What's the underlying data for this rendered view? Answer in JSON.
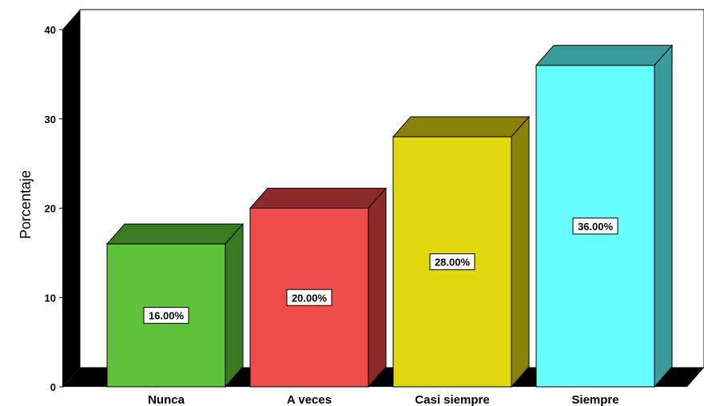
{
  "chart_data": {
    "type": "bar",
    "title": "",
    "xlabel": "",
    "ylabel": "Porcentaje",
    "ylim": [
      0,
      40
    ],
    "yticks": [
      0,
      10,
      20,
      30,
      40
    ],
    "categories": [
      "Nunca",
      "A veces",
      "Casi siempre",
      "Siempre"
    ],
    "values": [
      16,
      20,
      28,
      36
    ],
    "data_labels": [
      "16.00%",
      "20.00%",
      "28.00%",
      "36.00%"
    ],
    "colors": [
      "#5ec23a",
      "#ee4b4d",
      "#e1d80f",
      "#66ffff"
    ],
    "side_colors": [
      "#3a7a22",
      "#8c2a2a",
      "#8b820a",
      "#3a9a9a"
    ],
    "grid": false,
    "legend": "none",
    "style": "3d"
  }
}
